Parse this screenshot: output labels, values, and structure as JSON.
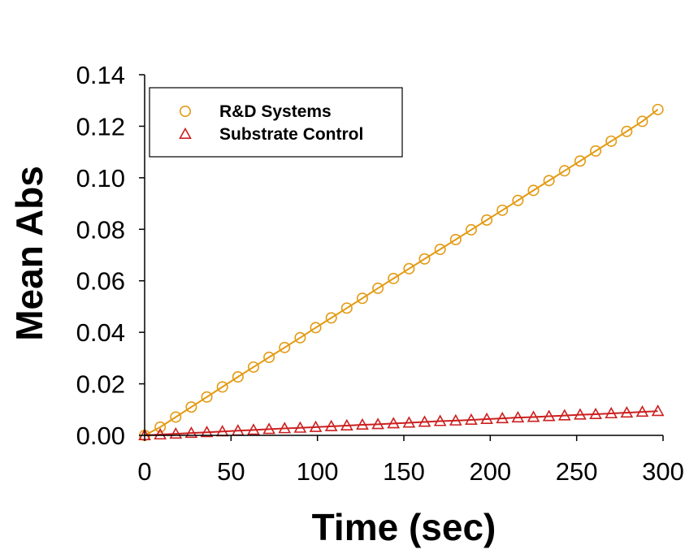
{
  "chart_data": {
    "type": "line",
    "title": "",
    "xlabel": "Time (sec)",
    "ylabel": "Mean Abs",
    "xlim": [
      0,
      300
    ],
    "ylim": [
      0,
      0.14
    ],
    "xticks": [
      0,
      50,
      100,
      150,
      200,
      250,
      300
    ],
    "xtick_labels": [
      "0",
      "50",
      "100",
      "150",
      "200",
      "250",
      "300"
    ],
    "yticks": [
      0,
      0.02,
      0.04,
      0.06,
      0.08,
      0.1,
      0.12,
      0.14
    ],
    "ytick_labels": [
      "0.00",
      "0.02",
      "0.04",
      "0.06",
      "0.08",
      "0.10",
      "0.12",
      "0.14"
    ],
    "grid": false,
    "legend_position": "top-left",
    "x": [
      0,
      9,
      18,
      27,
      36,
      45,
      54,
      63,
      72,
      81,
      90,
      99,
      108,
      117,
      126,
      135,
      144,
      153,
      162,
      171,
      180,
      189,
      198,
      207,
      216,
      225,
      234,
      243,
      252,
      261,
      270,
      279,
      288,
      297
    ],
    "series": [
      {
        "name": "R&D Systems",
        "marker": "circle",
        "color": "#E39A13",
        "values": [
          0.0,
          0.0032,
          0.0071,
          0.011,
          0.0149,
          0.0188,
          0.0227,
          0.0265,
          0.0303,
          0.0341,
          0.0379,
          0.0418,
          0.0456,
          0.0494,
          0.0532,
          0.0571,
          0.0609,
          0.0647,
          0.0685,
          0.0722,
          0.076,
          0.0798,
          0.0836,
          0.0874,
          0.0912,
          0.0951,
          0.0989,
          0.1027,
          0.1065,
          0.1104,
          0.1142,
          0.118,
          0.1219,
          0.1265
        ]
      },
      {
        "name": "Substrate Control",
        "marker": "triangle",
        "color": "#CC1F1F",
        "values": [
          0.0,
          0.0003,
          0.0006,
          0.0009,
          0.0012,
          0.0015,
          0.0018,
          0.0021,
          0.0024,
          0.0027,
          0.0029,
          0.0032,
          0.0035,
          0.0038,
          0.0041,
          0.0043,
          0.0046,
          0.0049,
          0.0052,
          0.0055,
          0.0057,
          0.006,
          0.0063,
          0.0066,
          0.0069,
          0.0071,
          0.0074,
          0.0077,
          0.008,
          0.0082,
          0.0085,
          0.0088,
          0.0091,
          0.0094
        ]
      }
    ]
  }
}
